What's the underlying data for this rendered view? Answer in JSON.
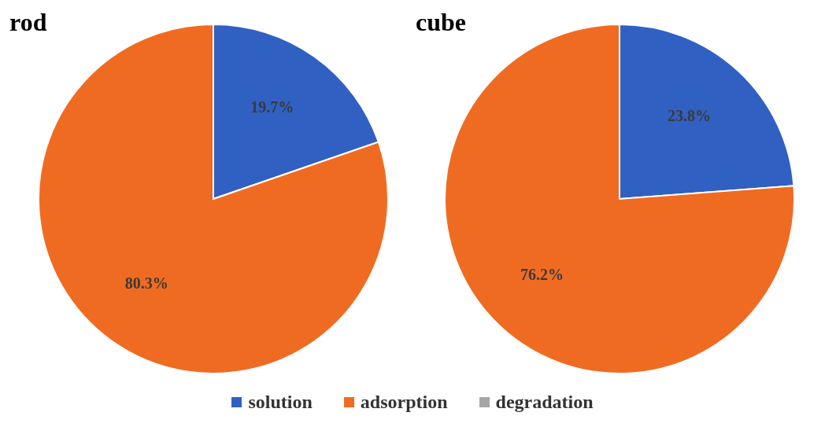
{
  "chart_data": [
    {
      "type": "pie",
      "title": "rod",
      "categories": [
        "solution",
        "adsorption",
        "degradation"
      ],
      "values": [
        19.7,
        80.3,
        0
      ],
      "colors": [
        "#3160c3",
        "#f06b22",
        "#a5a5a5"
      ],
      "value_labels": [
        "19.7%",
        "80.3%",
        null
      ],
      "legend": "bottom"
    },
    {
      "type": "pie",
      "title": "cube",
      "categories": [
        null,
        null,
        null
      ],
      "values": [
        23.8,
        76.2,
        0
      ],
      "colors": [
        "#3160c3",
        "#f06b22",
        "#a5a5a5"
      ],
      "value_labels": [
        "23.8%",
        "76.2%",
        null
      ]
    }
  ]
}
